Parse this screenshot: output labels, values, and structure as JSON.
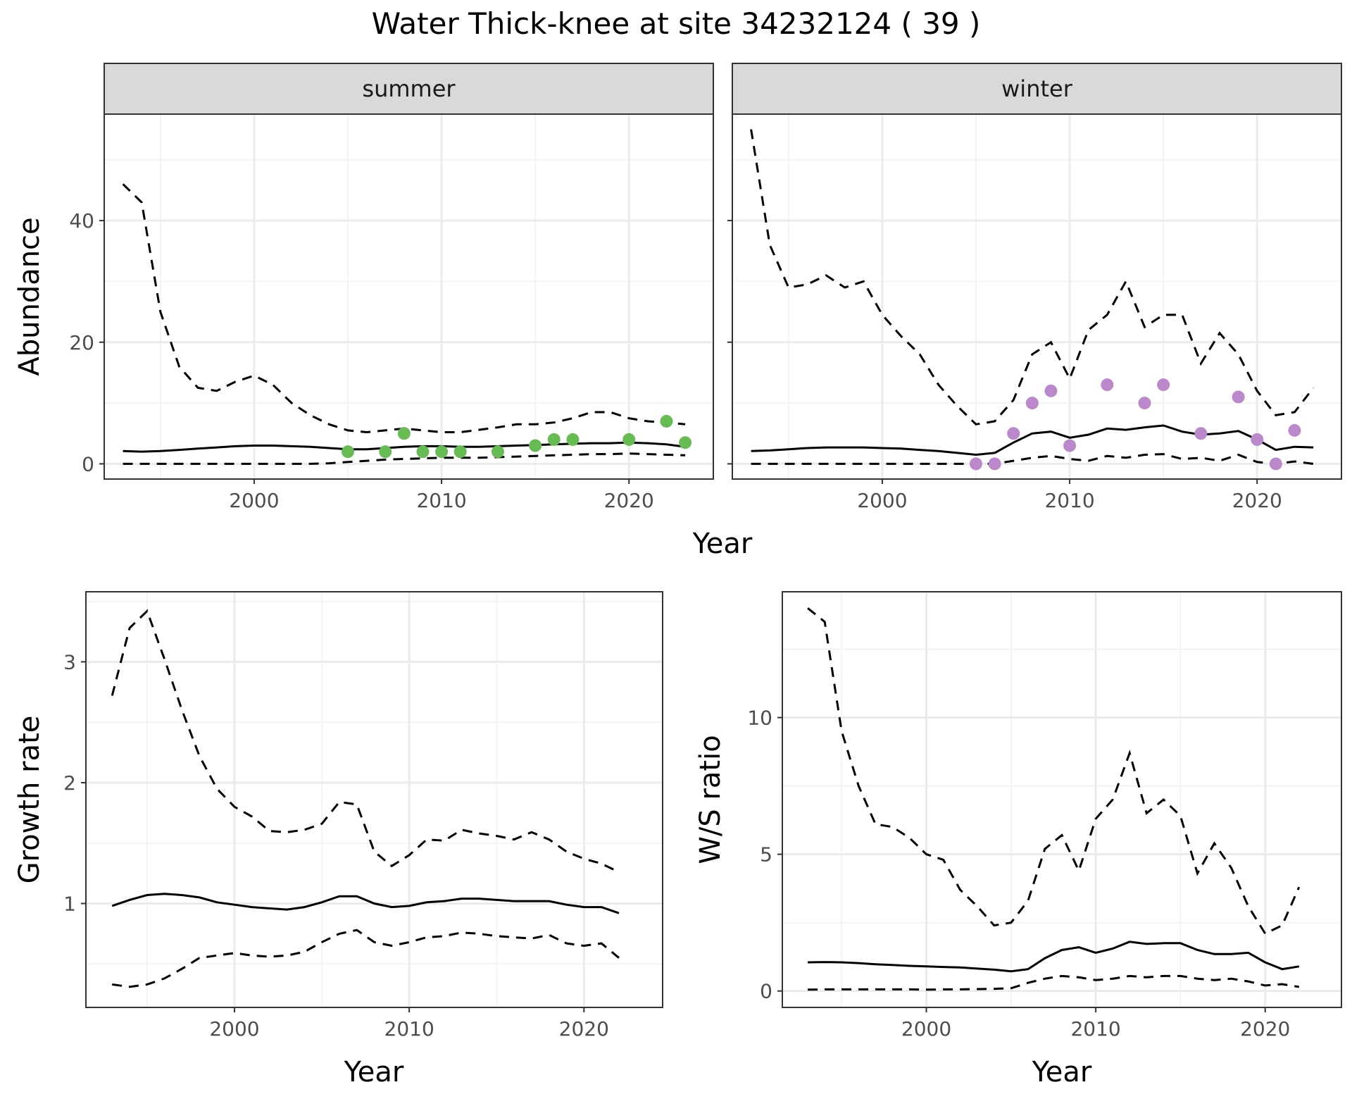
{
  "title": "Water Thick-knee at site 34232124 ( 39 )",
  "colors": {
    "summer_points": "#66bb55",
    "winter_points": "#bb88cc"
  },
  "chart_data": [
    {
      "id": "abundance_summer",
      "type": "line",
      "facet": "summer",
      "xlabel": "Year",
      "ylabel": "Abundance",
      "xlim": [
        1992,
        2024.5
      ],
      "ylim": [
        -2.5,
        57.5
      ],
      "xticks": [
        2000,
        2010,
        2020
      ],
      "yticks": [
        0,
        20,
        40
      ],
      "x": [
        1993,
        1994,
        1995,
        1996,
        1997,
        1998,
        1999,
        2000,
        2001,
        2002,
        2003,
        2004,
        2005,
        2006,
        2007,
        2008,
        2009,
        2010,
        2011,
        2012,
        2013,
        2014,
        2015,
        2016,
        2017,
        2018,
        2019,
        2020,
        2021,
        2022,
        2023
      ],
      "series": [
        {
          "role": "median",
          "values": [
            2.1,
            2.0,
            2.1,
            2.3,
            2.5,
            2.7,
            2.9,
            3.0,
            3.0,
            2.9,
            2.8,
            2.6,
            2.4,
            2.4,
            2.6,
            2.8,
            2.9,
            2.9,
            2.8,
            2.8,
            2.9,
            3.0,
            3.1,
            3.2,
            3.3,
            3.4,
            3.4,
            3.5,
            3.4,
            3.2,
            2.8
          ]
        },
        {
          "role": "upper",
          "values": [
            46,
            43,
            25,
            16,
            12.5,
            12,
            13.5,
            14.5,
            13,
            10,
            8,
            6.5,
            5.5,
            5.2,
            5.5,
            5.8,
            5.5,
            5.2,
            5.2,
            5.6,
            6,
            6.5,
            6.5,
            6.8,
            7.5,
            8.5,
            8.5,
            7.5,
            7,
            6.8,
            6.5
          ]
        },
        {
          "role": "lower",
          "values": [
            0,
            0,
            0,
            0,
            0,
            0,
            0,
            0,
            0,
            0,
            0,
            0.1,
            0.3,
            0.5,
            0.7,
            0.8,
            0.9,
            1.0,
            1.0,
            1.0,
            1.1,
            1.2,
            1.3,
            1.4,
            1.5,
            1.6,
            1.6,
            1.7,
            1.6,
            1.5,
            1.4
          ]
        }
      ],
      "points": {
        "x": [
          2005,
          2007,
          2008,
          2009,
          2010,
          2011,
          2013,
          2015,
          2016,
          2017,
          2020,
          2022,
          2023
        ],
        "y": [
          2,
          2,
          5,
          2,
          2,
          2,
          2,
          3,
          4,
          4,
          4,
          7,
          3.5
        ]
      }
    },
    {
      "id": "abundance_winter",
      "type": "line",
      "facet": "winter",
      "xlabel": "Year",
      "ylabel": "Abundance",
      "xlim": [
        1992,
        2024.5
      ],
      "ylim": [
        -2.5,
        57.5
      ],
      "xticks": [
        2000,
        2010,
        2020
      ],
      "yticks": [
        0,
        20,
        40
      ],
      "x": [
        1993,
        1994,
        1995,
        1996,
        1997,
        1998,
        1999,
        2000,
        2001,
        2002,
        2003,
        2004,
        2005,
        2006,
        2007,
        2008,
        2009,
        2010,
        2011,
        2012,
        2013,
        2014,
        2015,
        2016,
        2017,
        2018,
        2019,
        2020,
        2021,
        2022,
        2023
      ],
      "series": [
        {
          "role": "median",
          "values": [
            2.1,
            2.2,
            2.4,
            2.6,
            2.7,
            2.7,
            2.7,
            2.6,
            2.5,
            2.3,
            2.1,
            1.8,
            1.5,
            1.8,
            3.5,
            5.0,
            5.3,
            4.3,
            4.8,
            5.8,
            5.6,
            6.0,
            6.3,
            5.3,
            4.8,
            5.0,
            5.4,
            4.0,
            2.3,
            2.8,
            2.7
          ]
        },
        {
          "role": "upper",
          "values": [
            55,
            36,
            29,
            29.5,
            31,
            29,
            30,
            24.5,
            21,
            18,
            13,
            9.5,
            6.5,
            7,
            10.5,
            18,
            20,
            14,
            22,
            24.5,
            30,
            22.5,
            24.5,
            24.5,
            16.5,
            21.5,
            18,
            12,
            8,
            8.5,
            12.5
          ]
        },
        {
          "role": "lower",
          "values": [
            0,
            0,
            0,
            0,
            0,
            0,
            0,
            0,
            0,
            0,
            0,
            0,
            0,
            0,
            0.5,
            1.0,
            1.3,
            0.8,
            0.5,
            1.3,
            1.0,
            1.5,
            1.6,
            0.8,
            1.0,
            0.5,
            1.5,
            0.3,
            0,
            0.4,
            0
          ]
        }
      ],
      "points": {
        "x": [
          2005,
          2006,
          2007,
          2008,
          2009,
          2010,
          2012,
          2014,
          2015,
          2017,
          2019,
          2020,
          2021,
          2022
        ],
        "y": [
          0,
          0,
          5,
          10,
          12,
          3,
          13,
          10,
          13,
          5,
          11,
          4,
          0,
          5.5
        ]
      }
    },
    {
      "id": "growth_rate",
      "type": "line",
      "xlabel": "Year",
      "ylabel": "Growth rate",
      "xlim": [
        1991.5,
        2024.5
      ],
      "ylim": [
        0.14,
        3.58
      ],
      "xticks": [
        2000,
        2010,
        2020
      ],
      "yticks": [
        1,
        2,
        3
      ],
      "x": [
        1993,
        1994,
        1995,
        1996,
        1997,
        1998,
        1999,
        2000,
        2001,
        2002,
        2003,
        2004,
        2005,
        2006,
        2007,
        2008,
        2009,
        2010,
        2011,
        2012,
        2013,
        2014,
        2015,
        2016,
        2017,
        2018,
        2019,
        2020,
        2021,
        2022
      ],
      "series": [
        {
          "role": "median",
          "values": [
            0.98,
            1.03,
            1.07,
            1.08,
            1.07,
            1.05,
            1.01,
            0.99,
            0.97,
            0.96,
            0.95,
            0.97,
            1.01,
            1.06,
            1.06,
            1.0,
            0.97,
            0.98,
            1.01,
            1.02,
            1.04,
            1.04,
            1.03,
            1.02,
            1.02,
            1.02,
            0.99,
            0.97,
            0.97,
            0.92
          ]
        },
        {
          "role": "upper",
          "values": [
            2.72,
            3.28,
            3.42,
            3.02,
            2.6,
            2.22,
            1.95,
            1.8,
            1.72,
            1.6,
            1.59,
            1.61,
            1.66,
            1.84,
            1.82,
            1.43,
            1.31,
            1.4,
            1.53,
            1.52,
            1.61,
            1.58,
            1.56,
            1.53,
            1.59,
            1.53,
            1.43,
            1.37,
            1.33,
            1.26
          ]
        },
        {
          "role": "lower",
          "values": [
            0.33,
            0.31,
            0.33,
            0.38,
            0.46,
            0.55,
            0.57,
            0.59,
            0.57,
            0.56,
            0.57,
            0.6,
            0.68,
            0.75,
            0.78,
            0.68,
            0.65,
            0.68,
            0.72,
            0.73,
            0.76,
            0.75,
            0.73,
            0.72,
            0.71,
            0.74,
            0.67,
            0.65,
            0.67,
            0.55
          ]
        }
      ]
    },
    {
      "id": "ws_ratio",
      "type": "line",
      "xlabel": "Year",
      "ylabel": "W/S ratio",
      "xlim": [
        1991.5,
        2024.5
      ],
      "ylim": [
        -0.6,
        14.6
      ],
      "xticks": [
        2000,
        2010,
        2020
      ],
      "yticks": [
        0,
        5,
        10
      ],
      "x": [
        1993,
        1994,
        1995,
        1996,
        1997,
        1998,
        1999,
        2000,
        2001,
        2002,
        2003,
        2004,
        2005,
        2006,
        2007,
        2008,
        2009,
        2010,
        2011,
        2012,
        2013,
        2014,
        2015,
        2016,
        2017,
        2018,
        2019,
        2020,
        2021,
        2022
      ],
      "series": [
        {
          "role": "median",
          "values": [
            1.05,
            1.06,
            1.05,
            1.02,
            0.98,
            0.95,
            0.92,
            0.9,
            0.88,
            0.86,
            0.82,
            0.78,
            0.72,
            0.8,
            1.2,
            1.5,
            1.6,
            1.4,
            1.55,
            1.8,
            1.72,
            1.75,
            1.75,
            1.5,
            1.35,
            1.35,
            1.4,
            1.05,
            0.8,
            0.9
          ]
        },
        {
          "role": "upper",
          "values": [
            14.0,
            13.5,
            9.5,
            7.5,
            6.1,
            6.0,
            5.6,
            5.0,
            4.8,
            3.7,
            3.1,
            2.4,
            2.5,
            3.3,
            5.2,
            5.7,
            4.4,
            6.3,
            7.0,
            8.7,
            6.5,
            7.0,
            6.4,
            4.3,
            5.4,
            4.5,
            3.1,
            2.1,
            2.4,
            3.8
          ]
        },
        {
          "role": "lower",
          "values": [
            0.05,
            0.06,
            0.06,
            0.06,
            0.06,
            0.06,
            0.06,
            0.05,
            0.06,
            0.06,
            0.07,
            0.08,
            0.1,
            0.3,
            0.45,
            0.55,
            0.5,
            0.4,
            0.45,
            0.55,
            0.5,
            0.55,
            0.55,
            0.45,
            0.4,
            0.45,
            0.35,
            0.2,
            0.25,
            0.15
          ]
        }
      ]
    }
  ]
}
